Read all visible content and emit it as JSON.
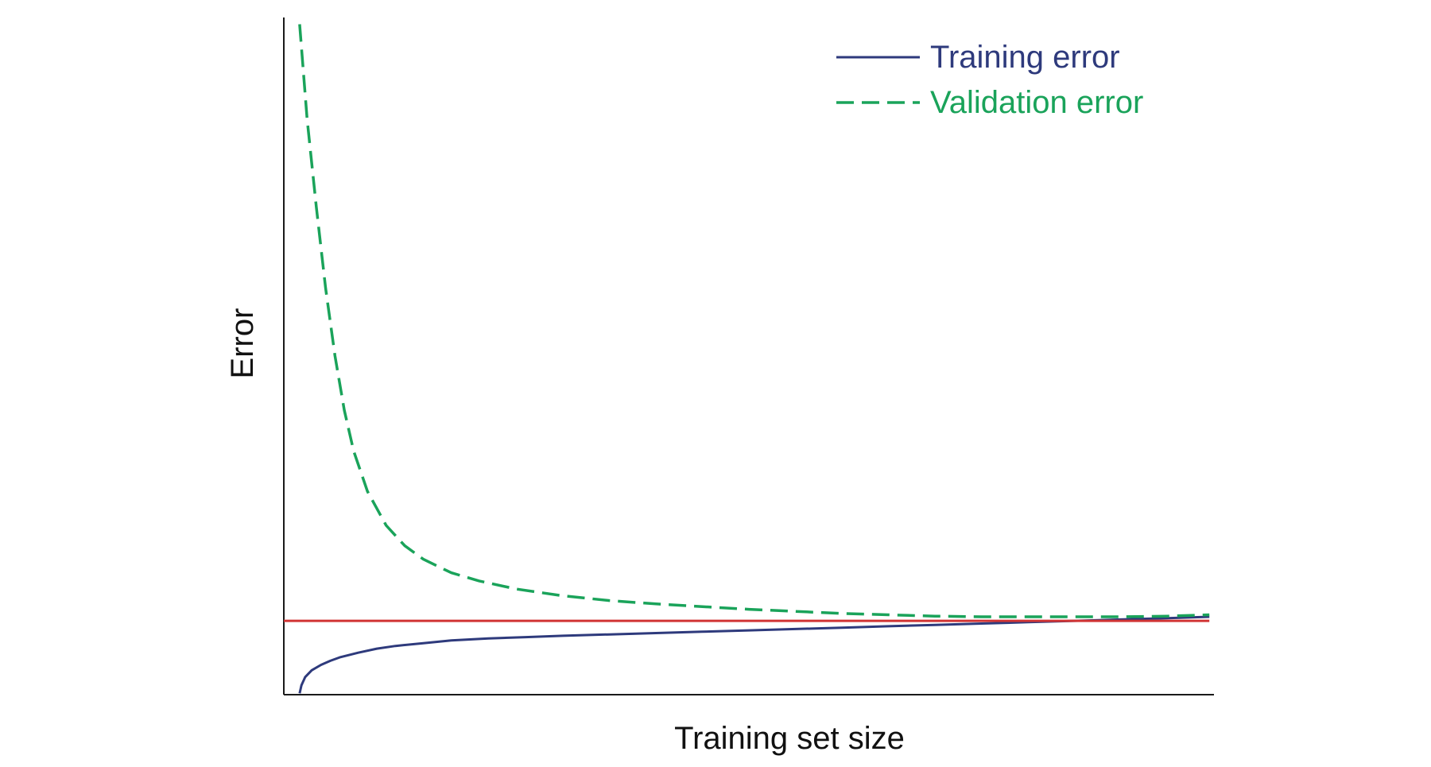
{
  "chart_data": {
    "type": "line",
    "title": "",
    "xlabel": "Training set size",
    "ylabel": "Error",
    "xlim": [
      0,
      100
    ],
    "ylim": [
      0,
      100
    ],
    "grid": false,
    "ticks_shown": false,
    "legend_position": "top-right",
    "series": [
      {
        "name": "Training error",
        "style": "solid",
        "color": "#2e3a7c",
        "x": [
          1.7,
          1.9,
          2.3,
          3,
          4,
          5,
          6,
          8,
          10,
          12,
          15,
          18,
          22,
          26,
          30,
          35,
          40,
          45,
          50,
          55,
          60,
          65,
          70,
          75,
          80,
          85,
          90,
          95,
          99.5
        ],
        "y": [
          0.2,
          1.4,
          2.6,
          3.6,
          4.4,
          5.0,
          5.5,
          6.2,
          6.8,
          7.2,
          7.6,
          8.0,
          8.3,
          8.5,
          8.7,
          8.9,
          9.1,
          9.3,
          9.5,
          9.7,
          9.9,
          10.1,
          10.3,
          10.5,
          10.7,
          10.9,
          11.1,
          11.3,
          11.5
        ]
      },
      {
        "name": "Validation error",
        "style": "dashed",
        "color": "#1aa35a",
        "x": [
          1.7,
          2.5,
          3.5,
          4.5,
          5.5,
          6.5,
          7.5,
          9,
          11,
          13,
          15,
          18,
          21,
          25,
          30,
          35,
          40,
          45,
          50,
          55,
          60,
          65,
          70,
          75,
          80,
          85,
          90,
          95,
          99.5
        ],
        "y": [
          99.0,
          85.0,
          72.0,
          60.0,
          50.0,
          42.0,
          36.0,
          30.0,
          25.0,
          22.0,
          20.0,
          18.0,
          16.8,
          15.6,
          14.6,
          13.9,
          13.4,
          13.0,
          12.6,
          12.3,
          12.0,
          11.8,
          11.6,
          11.5,
          11.5,
          11.5,
          11.5,
          11.6,
          11.8
        ]
      },
      {
        "name": "",
        "style": "solid",
        "color": "#d13434",
        "x": [
          0,
          99.5
        ],
        "y": [
          10.9,
          10.9
        ]
      }
    ]
  }
}
